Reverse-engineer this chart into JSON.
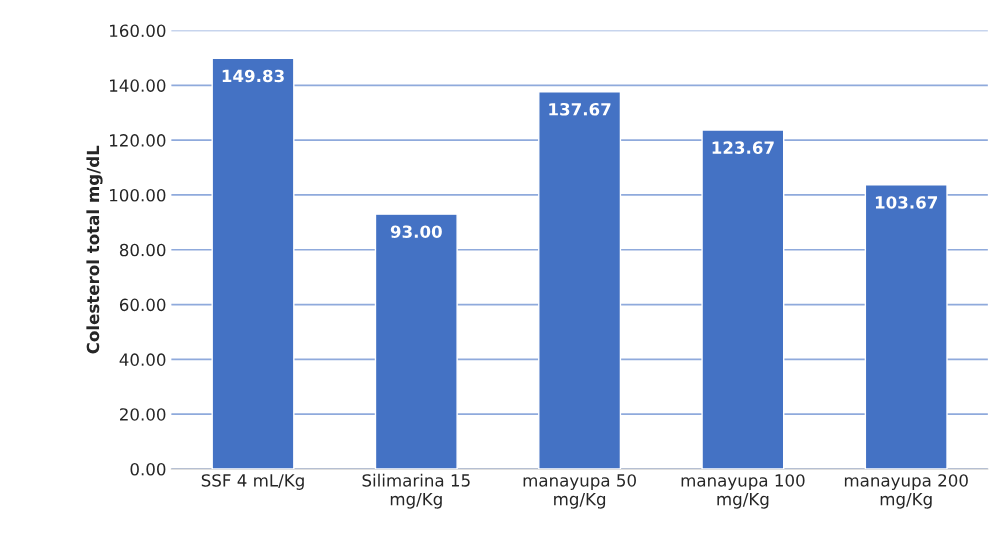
{
  "chart_data": {
    "type": "bar",
    "ylabel": "Colesterol total mg/dL",
    "categories": [
      "SSF 4 mL/Kg",
      "Silimarina 15\nmg/Kg",
      "manayupa 50\nmg/Kg",
      "manayupa 100\nmg/Kg",
      "manayupa 200\nmg/Kg"
    ],
    "values": [
      149.83,
      93.0,
      137.67,
      123.67,
      103.67
    ],
    "value_labels": [
      "149.83",
      "93.00",
      "137.67",
      "123.67",
      "103.67"
    ],
    "color": "#4472c4",
    "ylim": [
      0,
      160
    ],
    "yticks": [
      {
        "value": 0,
        "label": "0.00"
      },
      {
        "value": 20,
        "label": "20.00"
      },
      {
        "value": 40,
        "label": "40.00"
      },
      {
        "value": 60,
        "label": "60.00"
      },
      {
        "value": 80,
        "label": "80.00"
      },
      {
        "value": 100,
        "label": "100.00"
      },
      {
        "value": 120,
        "label": "120.00"
      },
      {
        "value": 140,
        "label": "140.00"
      },
      {
        "value": 160,
        "label": "160.00"
      }
    ],
    "grid": "y",
    "legend": false
  }
}
